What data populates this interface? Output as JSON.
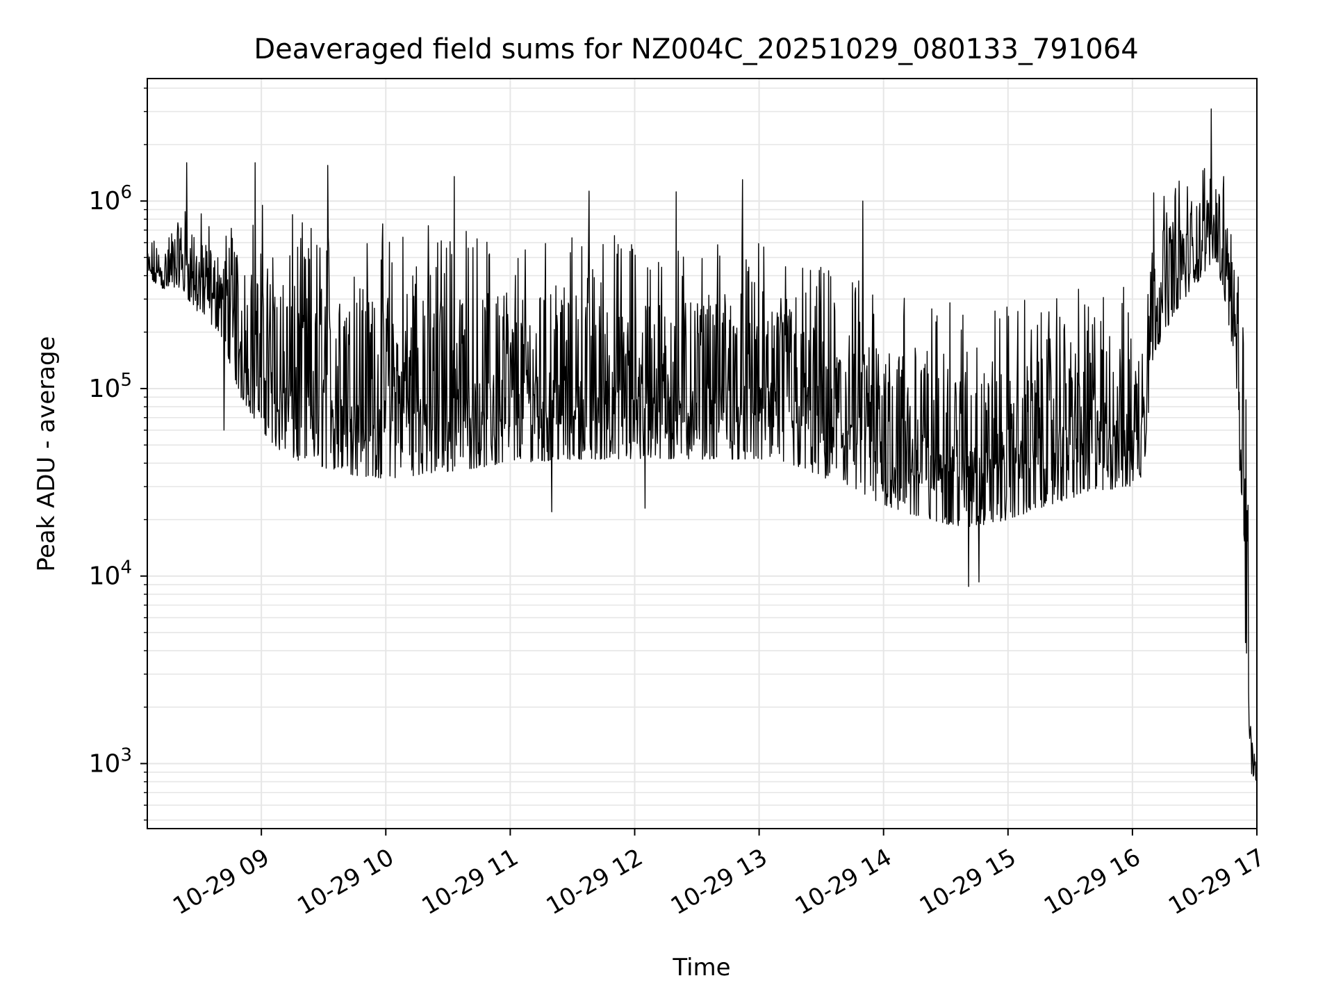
{
  "chart_data": {
    "type": "line",
    "title": "Deaveraged field sums for NZ004C_20251029_080133_791064",
    "xlabel": "Time",
    "ylabel": "Peak ADU - average",
    "yscale": "log",
    "ylim": [
      450,
      4500000
    ],
    "xlim": [
      "2025-10-29 08:05",
      "2025-10-29 17:00"
    ],
    "x_ticks": [
      {
        "value": "2025-10-29 09:00",
        "label": "10-29 09"
      },
      {
        "value": "2025-10-29 10:00",
        "label": "10-29 10"
      },
      {
        "value": "2025-10-29 11:00",
        "label": "10-29 11"
      },
      {
        "value": "2025-10-29 12:00",
        "label": "10-29 12"
      },
      {
        "value": "2025-10-29 13:00",
        "label": "10-29 13"
      },
      {
        "value": "2025-10-29 14:00",
        "label": "10-29 14"
      },
      {
        "value": "2025-10-29 15:00",
        "label": "10-29 15"
      },
      {
        "value": "2025-10-29 16:00",
        "label": "10-29 16"
      },
      {
        "value": "2025-10-29 17:00",
        "label": "10-29 17"
      }
    ],
    "y_ticks": [
      {
        "value": 1000,
        "label": "10",
        "exp": "3"
      },
      {
        "value": 10000,
        "label": "10",
        "exp": "4"
      },
      {
        "value": 100000,
        "label": "10",
        "exp": "5"
      },
      {
        "value": 1000000,
        "label": "10",
        "exp": "6"
      }
    ],
    "grid": true,
    "line_color": "#000000",
    "grid_color": "#e6e6e6",
    "series": [
      {
        "envelope": {
          "x": [
            "2025-10-29 08:05",
            "2025-10-29 08:15",
            "2025-10-29 08:20",
            "2025-10-29 08:30",
            "2025-10-29 08:40",
            "2025-10-29 08:50",
            "2025-10-29 09:00",
            "2025-10-29 09:10",
            "2025-10-29 09:20",
            "2025-10-29 09:30",
            "2025-10-29 09:40",
            "2025-10-29 10:00",
            "2025-10-29 10:30",
            "2025-10-29 11:00",
            "2025-10-29 11:30",
            "2025-10-29 12:00",
            "2025-10-29 12:30",
            "2025-10-29 13:00",
            "2025-10-29 13:20",
            "2025-10-29 13:40",
            "2025-10-29 14:00",
            "2025-10-29 14:20",
            "2025-10-29 14:40",
            "2025-10-29 15:00",
            "2025-10-29 15:20",
            "2025-10-29 15:40",
            "2025-10-29 16:00",
            "2025-10-29 16:05",
            "2025-10-29 16:10",
            "2025-10-29 16:20",
            "2025-10-29 16:30",
            "2025-10-29 16:40",
            "2025-10-29 16:45",
            "2025-10-29 16:50",
            "2025-10-29 16:55",
            "2025-10-29 16:57",
            "2025-10-29 17:00"
          ],
          "low": [
            380000,
            330000,
            350000,
            250000,
            200000,
            90000,
            60000,
            45000,
            40000,
            38000,
            35000,
            33000,
            36000,
            40000,
            42000,
            42000,
            42000,
            42000,
            38000,
            30000,
            24000,
            20000,
            18000,
            20000,
            24000,
            28000,
            30000,
            30000,
            150000,
            250000,
            350000,
            500000,
            280000,
            120000,
            3000,
            900,
            800
          ],
          "high": [
            600000,
            700000,
            1100000,
            900000,
            800000,
            900000,
            1000000,
            900000,
            800000,
            800000,
            800000,
            800000,
            800000,
            700000,
            700000,
            700000,
            650000,
            600000,
            500000,
            420000,
            380000,
            300000,
            280000,
            300000,
            320000,
            350000,
            380000,
            700000,
            1200000,
            1300000,
            1400000,
            1800000,
            1300000,
            500000,
            200000,
            1800,
            1200
          ]
        },
        "spikes": [
          {
            "x": "2025-10-29 08:24",
            "y": 1600000
          },
          {
            "x": "2025-10-29 08:57",
            "y": 1600000
          },
          {
            "x": "2025-10-29 09:32",
            "y": 1550000
          },
          {
            "x": "2025-10-29 10:33",
            "y": 1350000
          },
          {
            "x": "2025-10-29 11:38",
            "y": 1130000
          },
          {
            "x": "2025-10-29 12:20",
            "y": 1120000
          },
          {
            "x": "2025-10-29 12:52",
            "y": 1300000
          },
          {
            "x": "2025-10-29 13:50",
            "y": 1000000
          },
          {
            "x": "2025-10-29 16:38",
            "y": 3100000
          },
          {
            "x": "2025-10-29 16:44",
            "y": 1350000
          },
          {
            "x": "2025-10-29 16:48",
            "y": 470000
          }
        ],
        "dips": [
          {
            "x": "2025-10-29 08:42",
            "y": 60000
          },
          {
            "x": "2025-10-29 14:41",
            "y": 8800
          },
          {
            "x": "2025-10-29 14:46",
            "y": 9300
          },
          {
            "x": "2025-10-29 11:20",
            "y": 22000
          },
          {
            "x": "2025-10-29 12:05",
            "y": 23000
          },
          {
            "x": "2025-10-29 16:53",
            "y": 65000
          }
        ]
      }
    ]
  }
}
